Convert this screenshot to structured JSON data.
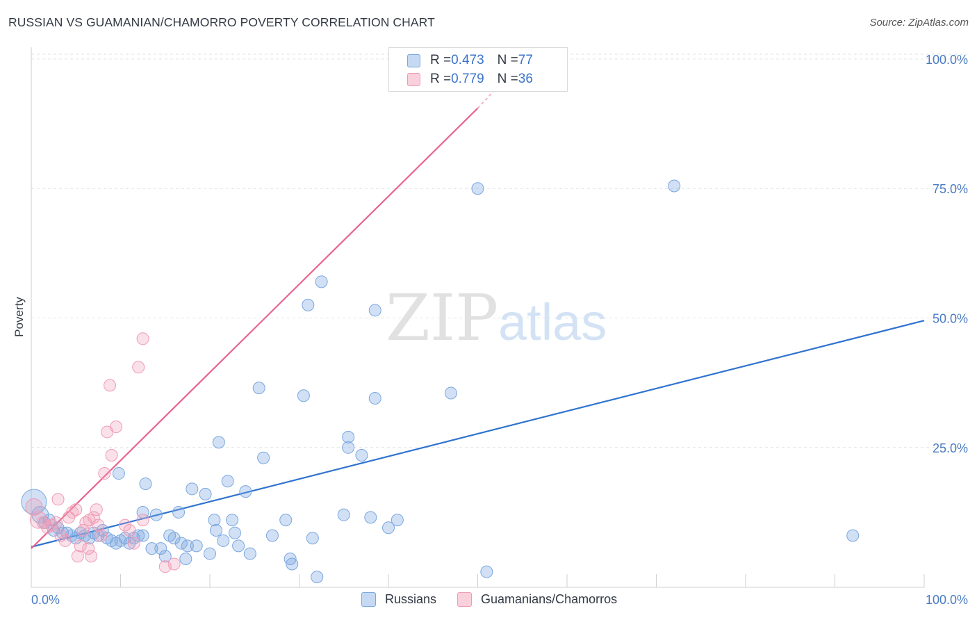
{
  "title": "RUSSIAN VS GUAMANIAN/CHAMORRO POVERTY CORRELATION CHART",
  "source": "Source: ZipAtlas.com",
  "watermark": {
    "zip": "ZIP",
    "atlas": "atlas"
  },
  "legend": {
    "rows": [
      {
        "r_label": "R = ",
        "r_value": "0.473",
        "n_label": "N = ",
        "n_value": "77",
        "color": "#7aa7e0"
      },
      {
        "r_label": "R = ",
        "r_value": "0.779",
        "n_label": "N = ",
        "n_value": "36",
        "color": "#f09ab5"
      }
    ]
  },
  "bottom_legend": [
    {
      "label": "Russians",
      "color": "#7aa7e0"
    },
    {
      "label": "Guamanians/Chamorros",
      "color": "#f09ab5"
    }
  ],
  "chart_data": {
    "type": "scatter",
    "title": "RUSSIAN VS GUAMANIAN/CHAMORRO POVERTY CORRELATION CHART",
    "xlabel": "",
    "ylabel": "Poverty",
    "xlim": [
      0,
      100
    ],
    "ylim": [
      -2,
      102
    ],
    "x_tick_labels": {
      "left": "0.0%",
      "right": "100.0%"
    },
    "y_ticks": [
      {
        "value": 100,
        "label": "100.0%"
      },
      {
        "value": 75,
        "label": "75.0%"
      },
      {
        "value": 50,
        "label": "50.0%"
      },
      {
        "value": 25,
        "label": "25.0%"
      }
    ],
    "grid": true,
    "series": [
      {
        "name": "Russians",
        "color": "#7aa7e0",
        "trend": {
          "x": [
            0,
            100
          ],
          "y": [
            5.8,
            49.5
          ]
        },
        "points": [
          [
            0.3,
            14.5
          ],
          [
            1.0,
            12
          ],
          [
            1.5,
            10.5
          ],
          [
            2.0,
            11
          ],
          [
            2.5,
            9
          ],
          [
            3.0,
            9.5
          ],
          [
            3.5,
            8.5
          ],
          [
            4.0,
            8.5
          ],
          [
            4.5,
            8
          ],
          [
            5.0,
            7.5
          ],
          [
            5.5,
            8.5
          ],
          [
            6.0,
            8
          ],
          [
            6.5,
            7.5
          ],
          [
            7.0,
            8.5
          ],
          [
            7.5,
            8
          ],
          [
            8.0,
            9
          ],
          [
            8.5,
            7.5
          ],
          [
            9.0,
            7
          ],
          [
            9.5,
            6.5
          ],
          [
            10.0,
            7
          ],
          [
            10.5,
            7.5
          ],
          [
            11.0,
            6.5
          ],
          [
            11.5,
            7.5
          ],
          [
            12.0,
            8.0
          ],
          [
            12.5,
            8
          ],
          [
            9.8,
            20
          ],
          [
            12.5,
            12.5
          ],
          [
            12.8,
            18
          ],
          [
            13.5,
            5.5
          ],
          [
            14.0,
            12
          ],
          [
            14.5,
            5.5
          ],
          [
            15.0,
            4
          ],
          [
            15.5,
            8
          ],
          [
            16.0,
            7.5
          ],
          [
            16.5,
            12.5
          ],
          [
            16.8,
            6.5
          ],
          [
            17.3,
            3.5
          ],
          [
            17.5,
            6
          ],
          [
            18.0,
            17
          ],
          [
            18.5,
            6
          ],
          [
            19.5,
            16
          ],
          [
            20.0,
            4.5
          ],
          [
            20.5,
            11
          ],
          [
            20.7,
            9
          ],
          [
            21.0,
            26
          ],
          [
            21.5,
            7.0
          ],
          [
            22.0,
            18.5
          ],
          [
            22.5,
            11
          ],
          [
            22.8,
            8.5
          ],
          [
            23.2,
            6
          ],
          [
            24.0,
            16.5
          ],
          [
            24.5,
            4.5
          ],
          [
            25.5,
            36.5
          ],
          [
            26.0,
            23
          ],
          [
            27.0,
            8
          ],
          [
            28.5,
            11
          ],
          [
            29.0,
            3.5
          ],
          [
            29.2,
            2.5
          ],
          [
            30.5,
            35
          ],
          [
            31.5,
            7.5
          ],
          [
            32.0,
            0
          ],
          [
            31.0,
            52.5
          ],
          [
            32.5,
            57
          ],
          [
            35.5,
            27
          ],
          [
            35.5,
            25
          ],
          [
            35.0,
            12
          ],
          [
            37.0,
            23.5
          ],
          [
            38.0,
            11.5
          ],
          [
            38.5,
            34.5
          ],
          [
            38.5,
            51.5
          ],
          [
            40.0,
            9.5
          ],
          [
            41.0,
            11
          ],
          [
            47.0,
            35.5
          ],
          [
            50.0,
            75
          ],
          [
            51.0,
            1
          ],
          [
            72.0,
            75.5
          ],
          [
            92.0,
            8
          ]
        ]
      },
      {
        "name": "Guamanians/Chamorros",
        "color": "#f09ab5",
        "trend": {
          "x": [
            0,
            50
          ],
          "y": [
            5.5,
            90.5
          ],
          "dashed_extension": {
            "x": [
              50,
              53
            ],
            "y": [
              90.5,
              96
            ]
          }
        },
        "points": [
          [
            0.3,
            13.5
          ],
          [
            0.8,
            11
          ],
          [
            1.3,
            10.5
          ],
          [
            1.8,
            9.5
          ],
          [
            2.3,
            10
          ],
          [
            2.8,
            10.5
          ],
          [
            3.0,
            15
          ],
          [
            3.3,
            8
          ],
          [
            3.8,
            7
          ],
          [
            4.2,
            11.5
          ],
          [
            4.6,
            12.5
          ],
          [
            5.0,
            13
          ],
          [
            5.2,
            4
          ],
          [
            5.5,
            6
          ],
          [
            5.8,
            9
          ],
          [
            6.1,
            10.5
          ],
          [
            6.4,
            5.5
          ],
          [
            6.7,
            4
          ],
          [
            7.0,
            11.5
          ],
          [
            7.3,
            13
          ],
          [
            6.5,
            11
          ],
          [
            7.5,
            10
          ],
          [
            7.8,
            8
          ],
          [
            8.2,
            20
          ],
          [
            8.5,
            28
          ],
          [
            8.8,
            37
          ],
          [
            9.0,
            23.5
          ],
          [
            9.5,
            29
          ],
          [
            10.5,
            10
          ],
          [
            11.0,
            9
          ],
          [
            11.5,
            6.5
          ],
          [
            12.0,
            40.5
          ],
          [
            12.5,
            46
          ],
          [
            15.0,
            2
          ],
          [
            16.0,
            2.5
          ],
          [
            12.5,
            11
          ]
        ]
      }
    ]
  }
}
